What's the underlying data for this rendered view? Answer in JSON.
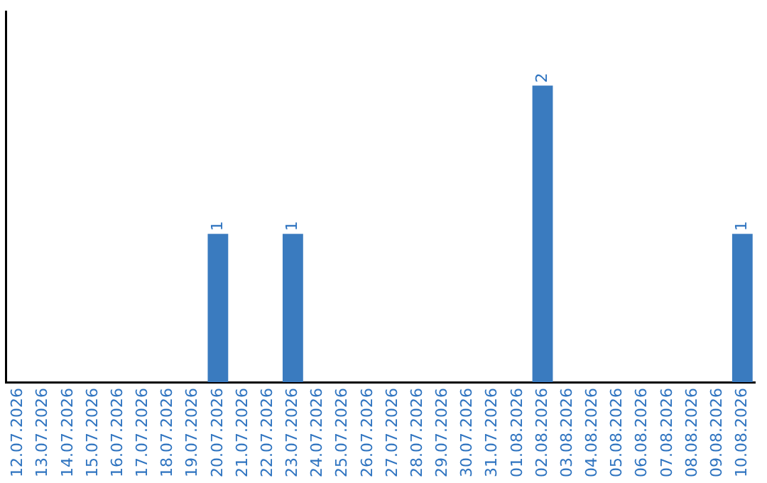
{
  "chart_data": {
    "type": "bar",
    "categories": [
      "12.07.2026",
      "13.07.2026",
      "14.07.2026",
      "15.07.2026",
      "16.07.2026",
      "17.07.2026",
      "18.07.2026",
      "19.07.2026",
      "20.07.2026",
      "21.07.2026",
      "22.07.2026",
      "23.07.2026",
      "24.07.2026",
      "25.07.2026",
      "26.07.2026",
      "27.07.2026",
      "28.07.2026",
      "29.07.2026",
      "30.07.2026",
      "31.07.2026",
      "01.08.2026",
      "02.08.2026",
      "03.08.2026",
      "04.08.2026",
      "05.08.2026",
      "06.08.2026",
      "07.08.2026",
      "08.08.2026",
      "09.08.2026",
      "10.08.2026"
    ],
    "values": [
      0,
      0,
      0,
      0,
      0,
      0,
      0,
      0,
      1,
      0,
      0,
      1,
      0,
      0,
      0,
      0,
      0,
      0,
      0,
      0,
      0,
      2,
      0,
      0,
      0,
      0,
      0,
      0,
      0,
      1
    ],
    "value_labels": [
      null,
      null,
      null,
      null,
      null,
      null,
      null,
      null,
      "1",
      null,
      null,
      "1",
      null,
      null,
      null,
      null,
      null,
      null,
      null,
      null,
      null,
      "2",
      null,
      null,
      null,
      null,
      null,
      null,
      null,
      "1"
    ],
    "color": "#3a7bbf",
    "grid": false,
    "legend": false,
    "tick_labels": "x"
  }
}
